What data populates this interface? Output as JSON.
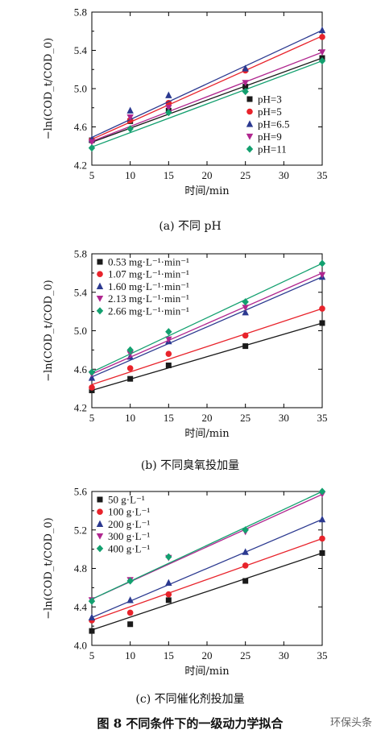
{
  "figure_caption": "图 8 不同条件下的一级动力学拟合",
  "watermark": "环保头条",
  "chart_data": [
    {
      "type": "scatter",
      "caption": "(a) 不同 pH",
      "xlabel": "时间/min",
      "ylabel": "−ln(COD_t/COD_0)",
      "xlim": [
        5,
        35
      ],
      "ylim": [
        4.2,
        5.8
      ],
      "xticks": [
        "5",
        "10",
        "15",
        "20",
        "25",
        "30",
        "35"
      ],
      "yticks": [
        "4.2",
        "4.6",
        "5.0",
        "5.4",
        "5.8"
      ],
      "legend_position": "bottom-right",
      "series": [
        {
          "name": "pH=3",
          "color": "#1a1a1a",
          "marker": "square",
          "x": [
            5,
            10,
            15,
            25,
            35
          ],
          "y": [
            4.46,
            4.66,
            4.77,
            5.02,
            5.32
          ],
          "fit": [
            4.44,
            5.32
          ]
        },
        {
          "name": "pH=5",
          "color": "#e8232b",
          "marker": "circle",
          "x": [
            5,
            10,
            15,
            25,
            35
          ],
          "y": [
            4.46,
            4.67,
            4.85,
            5.19,
            5.54
          ],
          "fit": [
            4.47,
            5.55
          ]
        },
        {
          "name": "pH=6.5",
          "color": "#2b3990",
          "marker": "triangle",
          "x": [
            5,
            10,
            15,
            25,
            35
          ],
          "y": [
            4.47,
            4.77,
            4.93,
            5.21,
            5.61
          ],
          "fit": [
            4.49,
            5.61
          ]
        },
        {
          "name": "pH=9",
          "color": "#b0268f",
          "marker": "tri-down",
          "x": [
            5,
            10,
            15,
            25,
            35
          ],
          "y": [
            4.44,
            4.7,
            4.8,
            5.06,
            5.38
          ],
          "fit": [
            4.45,
            5.38
          ]
        },
        {
          "name": "pH=11",
          "color": "#13a06f",
          "marker": "diamond",
          "x": [
            5,
            10,
            15,
            25,
            35
          ],
          "y": [
            4.38,
            4.58,
            4.75,
            4.97,
            5.29
          ],
          "fit": [
            4.39,
            5.29
          ]
        }
      ]
    },
    {
      "type": "scatter",
      "caption": "(b) 不同臭氧投加量",
      "xlabel": "时间/min",
      "ylabel": "−ln(COD_t/COD_0)",
      "xlim": [
        5,
        35
      ],
      "ylim": [
        4.2,
        5.8
      ],
      "xticks": [
        "5",
        "10",
        "15",
        "20",
        "25",
        "30",
        "35"
      ],
      "yticks": [
        "4.2",
        "4.6",
        "5.0",
        "5.4",
        "5.8"
      ],
      "legend_position": "top-left",
      "series": [
        {
          "name": "0.53 mg·L⁻¹·min⁻¹",
          "color": "#1a1a1a",
          "marker": "square",
          "x": [
            5,
            10,
            15,
            25,
            35
          ],
          "y": [
            4.38,
            4.5,
            4.64,
            4.84,
            5.08
          ],
          "fit": [
            4.38,
            5.08
          ]
        },
        {
          "name": "1.07 mg·L⁻¹·min⁻¹",
          "color": "#e8232b",
          "marker": "circle",
          "x": [
            5,
            10,
            15,
            25,
            35
          ],
          "y": [
            4.41,
            4.61,
            4.76,
            4.95,
            5.23
          ],
          "fit": [
            4.44,
            5.23
          ]
        },
        {
          "name": "1.60 mg·L⁻¹·min⁻¹",
          "color": "#2b3990",
          "marker": "triangle",
          "x": [
            5,
            10,
            15,
            25,
            35
          ],
          "y": [
            4.51,
            4.73,
            4.89,
            5.19,
            5.56
          ],
          "fit": [
            4.52,
            5.56
          ]
        },
        {
          "name": "2.13 mg·L⁻¹·min⁻¹",
          "color": "#b0268f",
          "marker": "tri-down",
          "x": [
            5,
            10,
            15,
            25,
            35
          ],
          "y": [
            4.55,
            4.76,
            4.91,
            5.24,
            5.58
          ],
          "fit": [
            4.55,
            5.6
          ]
        },
        {
          "name": "2.66 mg·L⁻¹·min⁻¹",
          "color": "#13a06f",
          "marker": "diamond",
          "x": [
            5,
            10,
            15,
            25,
            35
          ],
          "y": [
            4.57,
            4.8,
            4.99,
            5.3,
            5.7
          ],
          "fit": [
            4.57,
            5.7
          ]
        }
      ]
    },
    {
      "type": "scatter",
      "caption": "(c) 不同催化剂投加量",
      "xlabel": "时间/min",
      "ylabel": "−ln(COD_t/COD_0)",
      "xlim": [
        5,
        35
      ],
      "ylim": [
        4.0,
        5.6
      ],
      "xticks": [
        "5",
        "10",
        "15",
        "20",
        "25",
        "30",
        "35"
      ],
      "yticks": [
        "4.0",
        "4.4",
        "4.8",
        "5.2",
        "5.6"
      ],
      "legend_position": "top-left",
      "series": [
        {
          "name": "50 g·L⁻¹",
          "color": "#1a1a1a",
          "marker": "square",
          "x": [
            5,
            10,
            15,
            25,
            35
          ],
          "y": [
            4.15,
            4.22,
            4.47,
            4.67,
            4.96
          ],
          "fit": [
            4.16,
            4.96
          ]
        },
        {
          "name": "100 g·L⁻¹",
          "color": "#e8232b",
          "marker": "circle",
          "x": [
            5,
            10,
            15,
            25,
            35
          ],
          "y": [
            4.26,
            4.34,
            4.53,
            4.83,
            5.11
          ],
          "fit": [
            4.26,
            5.11
          ]
        },
        {
          "name": "200 g·L⁻¹",
          "color": "#2b3990",
          "marker": "triangle",
          "x": [
            5,
            10,
            15,
            25,
            35
          ],
          "y": [
            4.29,
            4.47,
            4.65,
            4.97,
            5.31
          ],
          "fit": [
            4.29,
            5.31
          ]
        },
        {
          "name": "300 g·L⁻¹",
          "color": "#b0268f",
          "marker": "tri-down",
          "x": [
            5,
            10,
            15,
            25,
            35
          ],
          "y": [
            4.47,
            4.68,
            4.91,
            5.18,
            5.57
          ],
          "fit": [
            4.48,
            5.57
          ]
        },
        {
          "name": "400 g·L⁻¹",
          "color": "#13a06f",
          "marker": "diamond",
          "x": [
            5,
            10,
            15,
            25,
            35
          ],
          "y": [
            4.46,
            4.67,
            4.92,
            5.2,
            5.6
          ],
          "fit": [
            4.48,
            5.6
          ]
        }
      ]
    }
  ]
}
